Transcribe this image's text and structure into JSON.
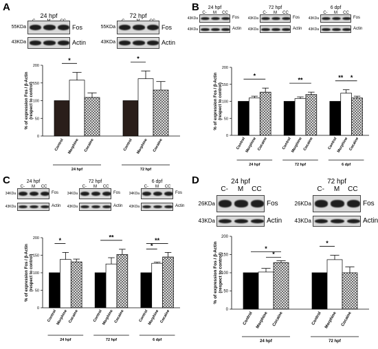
{
  "panels": [
    {
      "id": "A",
      "label": "A",
      "blots": [
        {
          "title": "24 hpf",
          "lanes": [
            "C-",
            "M",
            "CC"
          ],
          "rows": [
            {
              "kda": "55KDa",
              "protein": "Fos"
            },
            {
              "kda": "43KDa",
              "protein": "Actin"
            }
          ]
        },
        {
          "title": "72 hpf",
          "lanes": [
            "C-",
            "M",
            "CC"
          ],
          "rows": [
            {
              "kda": "55KDa",
              "protein": "Fos"
            },
            {
              "kda": "43KDa",
              "protein": "Actin"
            }
          ]
        }
      ],
      "chart_data": {
        "type": "bar",
        "ylabel": "% of expression Fos / β-Actin (respect to control)",
        "ylim": [
          0,
          200
        ],
        "yticks": [
          0,
          50,
          100,
          150,
          200
        ],
        "groups": [
          {
            "label": "24 hpf",
            "categories": [
              "Control",
              "Morphine",
              "Cocaine"
            ],
            "values": [
              100,
              158,
              109
            ],
            "errors": [
              0,
              22,
              13
            ],
            "fills": [
              "dark",
              "white",
              "hatch"
            ]
          },
          {
            "label": "72 hpf",
            "categories": [
              "Control",
              "Morphine",
              "Cocaine"
            ],
            "values": [
              100,
              162,
              130
            ],
            "errors": [
              0,
              22,
              24
            ],
            "fills": [
              "dark",
              "white",
              "hatch"
            ]
          }
        ],
        "significance": [
          {
            "group": 0,
            "from": 0,
            "to": 1,
            "label": "*"
          },
          {
            "group": 1,
            "from": 0,
            "to": 1,
            "label": "*"
          }
        ]
      }
    },
    {
      "id": "B",
      "label": "B",
      "blots": [
        {
          "title": "24 hpf",
          "lanes": [
            "C-",
            "M",
            "CC"
          ],
          "rows": [
            {
              "kda": "43KDa",
              "protein": "Fos"
            },
            {
              "kda": "43KDa",
              "protein": "Actin"
            }
          ]
        },
        {
          "title": "72 hpf",
          "lanes": [
            "C-",
            "M",
            "CC"
          ],
          "rows": [
            {
              "kda": "43KDa",
              "protein": "Fos"
            },
            {
              "kda": "43KDa",
              "protein": "Actin"
            }
          ]
        },
        {
          "title": "6 dpf",
          "lanes": [
            "C-",
            "M",
            "CC"
          ],
          "rows": [
            {
              "kda": "43KDa",
              "protein": "Fos"
            },
            {
              "kda": "43KDa",
              "protein": "Actin"
            }
          ]
        }
      ],
      "chart_data": {
        "type": "bar",
        "ylabel": "% of expression Fos / β-Actin (respect to control)",
        "ylim": [
          0,
          200
        ],
        "yticks": [
          0,
          50,
          100,
          150,
          200
        ],
        "groups": [
          {
            "label": "24 hpf",
            "categories": [
              "Control",
              "Morphine",
              "Cocaine"
            ],
            "values": [
              100,
              110,
              127
            ],
            "errors": [
              0,
              5,
              12
            ],
            "fills": [
              "black",
              "white",
              "hatch"
            ]
          },
          {
            "label": "72 hpf",
            "categories": [
              "Control",
              "Morphine",
              "Cocaine"
            ],
            "values": [
              100,
              108,
              120
            ],
            "errors": [
              0,
              5,
              7
            ],
            "fills": [
              "black",
              "white",
              "hatch"
            ]
          },
          {
            "label": "6 dpf",
            "categories": [
              "Control",
              "Morphine",
              "Cocaine"
            ],
            "values": [
              100,
              124,
              110
            ],
            "errors": [
              0,
              10,
              5
            ],
            "fills": [
              "black",
              "white",
              "hatch"
            ]
          }
        ],
        "significance": [
          {
            "group": 0,
            "from": 0,
            "to": 2,
            "label": "*"
          },
          {
            "group": 1,
            "from": 0,
            "to": 2,
            "label": "**"
          },
          {
            "group": 2,
            "from": 0,
            "to": 1,
            "label": "**"
          },
          {
            "group": 2,
            "from": 1,
            "to": 2,
            "label": "*"
          }
        ]
      }
    },
    {
      "id": "C",
      "label": "C",
      "blots": [
        {
          "title": "24 hpf",
          "lanes": [
            "C-",
            "M",
            "CC"
          ],
          "rows": [
            {
              "kda": "34KDa",
              "protein": "Fos"
            },
            {
              "kda": "43KDa",
              "protein": "Actin"
            }
          ]
        },
        {
          "title": "72 hpf",
          "lanes": [
            "C-",
            "M",
            "CC"
          ],
          "rows": [
            {
              "kda": "34KDa",
              "protein": "Fos"
            },
            {
              "kda": "43KDa",
              "protein": "Actin"
            }
          ]
        },
        {
          "title": "6 dpf",
          "lanes": [
            "C-",
            "M",
            "CC"
          ],
          "rows": [
            {
              "kda": "34KDa",
              "protein": "Fos"
            },
            {
              "kda": "43KDa",
              "protein": "Actin"
            }
          ]
        }
      ],
      "chart_data": {
        "type": "bar",
        "ylabel": "% of expression Fos / β-Actin (respect to control)",
        "ylim": [
          0,
          200
        ],
        "yticks": [
          0,
          50,
          100,
          150,
          200
        ],
        "groups": [
          {
            "label": "24 hpf",
            "categories": [
              "Control",
              "Morphine",
              "Cocaine"
            ],
            "values": [
              100,
              138,
              131
            ],
            "errors": [
              0,
              20,
              8
            ],
            "fills": [
              "black",
              "white",
              "hatch"
            ]
          },
          {
            "label": "72 hpf",
            "categories": [
              "Control",
              "Morphine",
              "Cocaine"
            ],
            "values": [
              100,
              125,
              152
            ],
            "errors": [
              0,
              18,
              15
            ],
            "fills": [
              "black",
              "white",
              "hatch"
            ]
          },
          {
            "label": "6 dpf",
            "categories": [
              "Control",
              "Morphine",
              "Cocaine"
            ],
            "values": [
              100,
              127,
              145
            ],
            "errors": [
              0,
              3,
              13
            ],
            "fills": [
              "black",
              "white",
              "hatch"
            ]
          }
        ],
        "significance": [
          {
            "group": 0,
            "from": 0,
            "to": 1,
            "label": "*"
          },
          {
            "group": 1,
            "from": 0,
            "to": 2,
            "label": "**"
          },
          {
            "group": 2,
            "from": 0,
            "to": 2,
            "label": "**"
          },
          {
            "group": 2,
            "from": 0,
            "to": 1,
            "label": "*",
            "low": true
          }
        ]
      }
    },
    {
      "id": "D",
      "label": "D",
      "blots": [
        {
          "title": "24 hpf",
          "lanes": [
            "C-",
            "M",
            "CC"
          ],
          "rows": [
            {
              "kda": "26KDa",
              "protein": "Fos"
            },
            {
              "kda": "43KDa",
              "protein": "Actin"
            }
          ]
        },
        {
          "title": "72 hpf",
          "lanes": [
            "C-",
            "M",
            "CC"
          ],
          "rows": [
            {
              "kda": "26KDa",
              "protein": "Fos"
            },
            {
              "kda": "43KDa",
              "protein": "Actin"
            }
          ]
        }
      ],
      "chart_data": {
        "type": "bar",
        "ylabel": "% of expression Fos / β-Actin (respect to control)",
        "ylim": [
          0,
          200
        ],
        "yticks": [
          0,
          50,
          100,
          150,
          200
        ],
        "groups": [
          {
            "label": "24 hpf",
            "categories": [
              "Control",
              "Morphine",
              "Cocaine"
            ],
            "values": [
              100,
              102,
              128
            ],
            "errors": [
              0,
              10,
              5
            ],
            "fills": [
              "black",
              "white",
              "hatch"
            ]
          },
          {
            "label": "72 hpf",
            "categories": [
              "Control",
              "Morphine",
              "Cocaine"
            ],
            "values": [
              100,
              136,
              100
            ],
            "errors": [
              0,
              12,
              16
            ],
            "fills": [
              "black",
              "white",
              "hatch"
            ]
          }
        ],
        "significance": [
          {
            "group": 0,
            "from": 0,
            "to": 2,
            "label": "*"
          },
          {
            "group": 0,
            "from": 1,
            "to": 2,
            "label": "*",
            "low": true
          },
          {
            "group": 1,
            "from": 0,
            "to": 1,
            "label": "*"
          }
        ]
      }
    }
  ]
}
